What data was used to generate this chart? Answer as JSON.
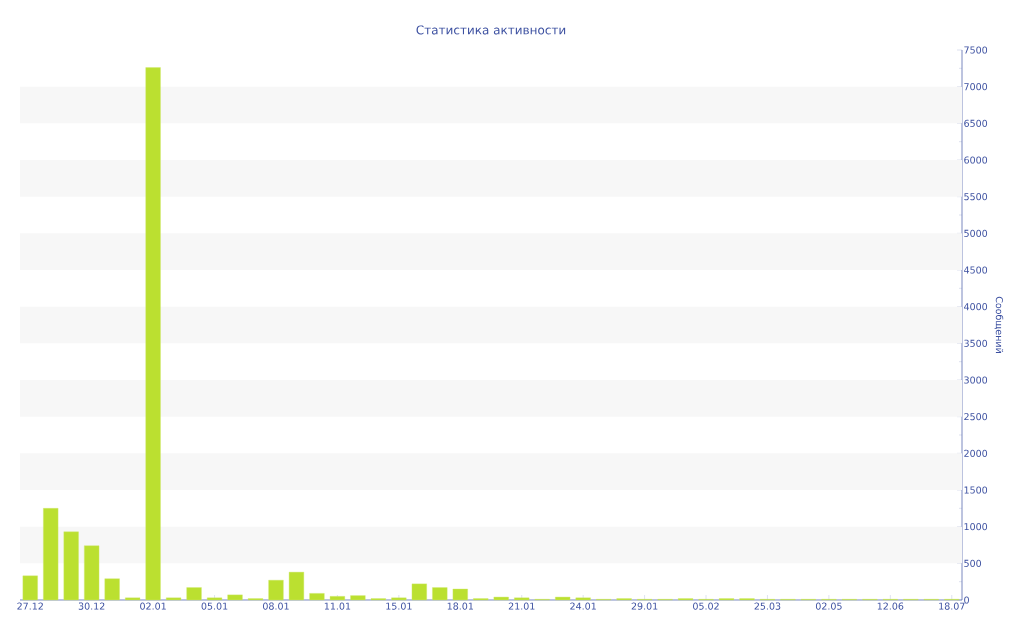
{
  "chart_data": {
    "type": "bar",
    "title": "Статистика активности",
    "ylabel": "Сообщений",
    "categories": [
      "27.12",
      null,
      null,
      "30.12",
      null,
      null,
      "02.01",
      null,
      null,
      "05.01",
      null,
      null,
      "08.01",
      null,
      null,
      "11.01",
      null,
      null,
      "15.01",
      null,
      null,
      "18.01",
      null,
      null,
      "21.01",
      null,
      null,
      "24.01",
      null,
      null,
      "29.01",
      null,
      null,
      "05.02",
      null,
      null,
      "25.03",
      null,
      null,
      "02.05",
      null,
      null,
      "12.06",
      null,
      null,
      "18.07"
    ],
    "values": [
      330,
      1250,
      930,
      740,
      290,
      30,
      7260,
      30,
      170,
      30,
      70,
      20,
      270,
      380,
      90,
      50,
      60,
      20,
      30,
      220,
      170,
      150,
      20,
      40,
      30,
      10,
      40,
      30,
      10,
      20,
      10,
      10,
      20,
      10,
      20,
      20,
      10,
      10,
      10,
      10,
      10,
      10,
      10,
      10,
      10,
      10
    ],
    "color": "#bbe030",
    "ylim": [
      0,
      7500
    ],
    "yticks": [
      0,
      500,
      1000,
      1500,
      2000,
      2500,
      3000,
      3500,
      4000,
      4500,
      5000,
      5500,
      6000,
      6500,
      7000,
      7500
    ],
    "bands": [
      {
        "axis": "y",
        "from": 500,
        "to": 1000,
        "color": "#f7f7f7"
      },
      {
        "axis": "y",
        "from": 1500,
        "to": 2000,
        "color": "#f7f7f7"
      },
      {
        "axis": "y",
        "from": 2500,
        "to": 3000,
        "color": "#f7f7f7"
      },
      {
        "axis": "y",
        "from": 3500,
        "to": 4000,
        "color": "#f7f7f7"
      },
      {
        "axis": "y",
        "from": 4500,
        "to": 5000,
        "color": "#f7f7f7"
      },
      {
        "axis": "y",
        "from": 5500,
        "to": 6000,
        "color": "#f7f7f7"
      },
      {
        "axis": "y",
        "from": 6500,
        "to": 7000,
        "color": "#f7f7f7"
      }
    ]
  }
}
